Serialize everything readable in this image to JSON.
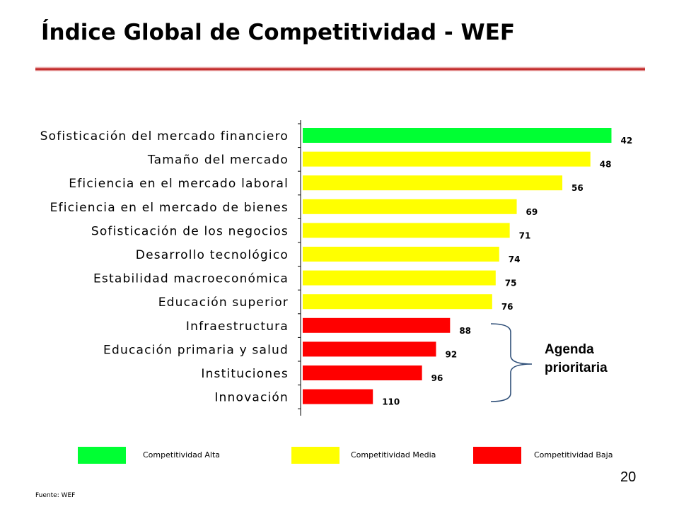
{
  "slide": {
    "title": "Índice Global de Competitividad - WEF",
    "page_number": "20",
    "source": "Fuente: WEF",
    "agenda_line1": "Agenda",
    "agenda_line2": "prioritaria"
  },
  "legend": [
    {
      "label": "Competitividad Alta",
      "color": "#00ff33"
    },
    {
      "label": "Competitividad Media",
      "color": "#ffff00"
    },
    {
      "label": "Competitividad Baja",
      "color": "#ff0000"
    }
  ],
  "chart_data": {
    "type": "bar",
    "orientation": "horizontal",
    "categories": [
      "Sofisticación del mercado financiero",
      "Tamaño del mercado",
      "Eficiencia en el mercado laboral",
      "Eficiencia en el mercado de bienes",
      "Sofisticación de los negocios",
      "Desarrollo tecnológico",
      "Estabilidad macroeconómica",
      "Educación superior",
      "Infraestructura",
      "Educación primaria y salud",
      "Instituciones",
      "Innovación"
    ],
    "values": [
      42,
      48,
      56,
      69,
      71,
      74,
      75,
      76,
      88,
      92,
      96,
      110
    ],
    "value_labels": [
      "42",
      "48",
      "56",
      "69",
      "71",
      "74",
      "75",
      "76",
      "88",
      "92",
      "96",
      "110"
    ],
    "bar_colors": [
      "#00ff33",
      "#ffff00",
      "#ffff00",
      "#ffff00",
      "#ffff00",
      "#ffff00",
      "#ffff00",
      "#ffff00",
      "#ff0000",
      "#ff0000",
      "#ff0000",
      "#ff0000"
    ],
    "axis": "reversed",
    "grid": false
  }
}
